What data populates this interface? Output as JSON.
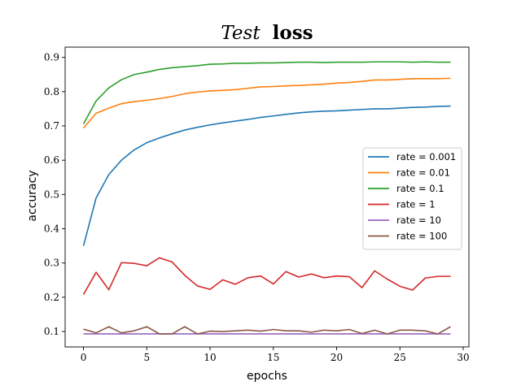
{
  "chart_data": {
    "type": "line",
    "title_italic": "Test",
    "title_bold": "loss",
    "xlabel": "epochs",
    "ylabel": "accuracy",
    "xlim": [
      -1.45,
      30.45
    ],
    "ylim": [
      0.055,
      0.93
    ],
    "xticks": [
      0,
      5,
      10,
      15,
      20,
      25,
      30
    ],
    "yticks": [
      0.1,
      0.2,
      0.3,
      0.4,
      0.5,
      0.6,
      0.7,
      0.8,
      0.9
    ],
    "legend_position": "center-right",
    "grid": false,
    "x": [
      0,
      1,
      2,
      3,
      4,
      5,
      6,
      7,
      8,
      9,
      10,
      11,
      12,
      13,
      14,
      15,
      16,
      17,
      18,
      19,
      20,
      21,
      22,
      23,
      24,
      25,
      26,
      27,
      28,
      29
    ],
    "series": [
      {
        "name": "rate = 0.001",
        "color": "#1f77b4",
        "values": [
          0.35,
          0.49,
          0.558,
          0.6,
          0.63,
          0.651,
          0.665,
          0.677,
          0.688,
          0.696,
          0.703,
          0.709,
          0.714,
          0.719,
          0.725,
          0.729,
          0.734,
          0.738,
          0.741,
          0.743,
          0.744,
          0.746,
          0.748,
          0.75,
          0.75,
          0.752,
          0.754,
          0.755,
          0.757,
          0.758
        ]
      },
      {
        "name": "rate = 0.01",
        "color": "#ff7f0e",
        "values": [
          0.694,
          0.737,
          0.752,
          0.765,
          0.771,
          0.775,
          0.78,
          0.786,
          0.794,
          0.799,
          0.802,
          0.804,
          0.806,
          0.81,
          0.814,
          0.815,
          0.817,
          0.818,
          0.82,
          0.822,
          0.825,
          0.827,
          0.83,
          0.834,
          0.834,
          0.836,
          0.838,
          0.838,
          0.838,
          0.839
        ]
      },
      {
        "name": "rate = 0.1",
        "color": "#2ca02c",
        "values": [
          0.706,
          0.773,
          0.811,
          0.835,
          0.85,
          0.857,
          0.865,
          0.87,
          0.873,
          0.876,
          0.88,
          0.881,
          0.883,
          0.883,
          0.884,
          0.884,
          0.885,
          0.886,
          0.886,
          0.885,
          0.886,
          0.886,
          0.886,
          0.887,
          0.887,
          0.887,
          0.886,
          0.887,
          0.886,
          0.886
        ]
      },
      {
        "name": "rate = 1",
        "color": "#d62728",
        "values": [
          0.208,
          0.273,
          0.222,
          0.301,
          0.299,
          0.292,
          0.315,
          0.303,
          0.264,
          0.233,
          0.223,
          0.251,
          0.238,
          0.257,
          0.262,
          0.239,
          0.275,
          0.259,
          0.268,
          0.257,
          0.262,
          0.26,
          0.228,
          0.277,
          0.253,
          0.232,
          0.221,
          0.256,
          0.261,
          0.261
        ]
      },
      {
        "name": "rate = 10",
        "color": "#9467bd",
        "values": [
          0.093,
          0.093,
          0.093,
          0.093,
          0.093,
          0.093,
          0.093,
          0.093,
          0.093,
          0.093,
          0.093,
          0.093,
          0.093,
          0.093,
          0.093,
          0.093,
          0.093,
          0.093,
          0.093,
          0.093,
          0.093,
          0.093,
          0.093,
          0.093,
          0.093,
          0.093,
          0.093,
          0.093,
          0.093,
          0.093
        ]
      },
      {
        "name": "rate = 100",
        "color": "#8c564b",
        "values": [
          0.107,
          0.096,
          0.114,
          0.096,
          0.102,
          0.114,
          0.093,
          0.093,
          0.114,
          0.093,
          0.101,
          0.1,
          0.102,
          0.104,
          0.101,
          0.106,
          0.102,
          0.102,
          0.098,
          0.104,
          0.102,
          0.106,
          0.094,
          0.104,
          0.093,
          0.104,
          0.104,
          0.102,
          0.093,
          0.114
        ]
      }
    ]
  }
}
